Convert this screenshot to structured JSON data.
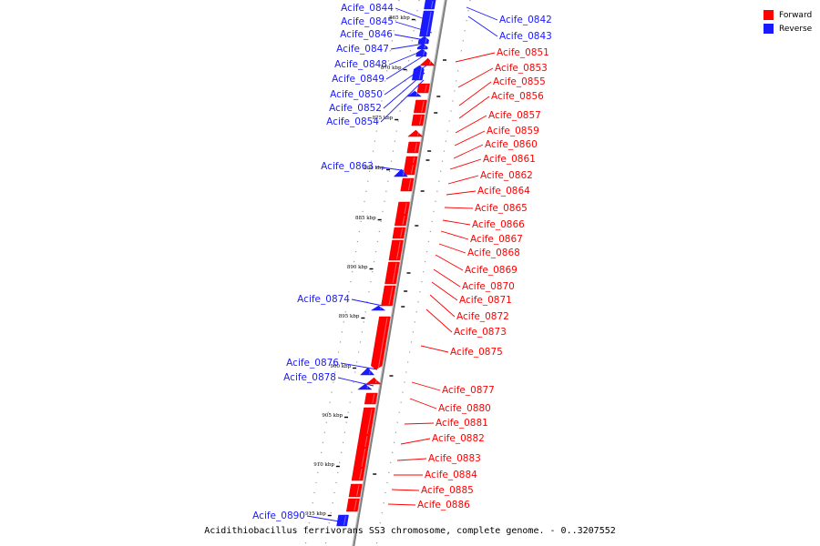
{
  "colors": {
    "forward": "#ff0000",
    "reverse": "#1a1aff",
    "axis": "#808080"
  },
  "legend": [
    {
      "key": "forward",
      "label": "Forward"
    },
    {
      "key": "reverse",
      "label": "Reverse"
    }
  ],
  "caption": "Acidithiobacillus ferrivorans SS3 chromosome, complete genome. - 0..3207552",
  "axis": {
    "ticks": [
      "865 kbp",
      "870 kbp",
      "875 kbp",
      "880 kbp",
      "885 kbp",
      "890 kbp",
      "895 kbp",
      "900 kbp",
      "905 kbp",
      "910 kbp",
      "915 kbp"
    ]
  },
  "genes_reverse": [
    "Acife_0844",
    "Acife_0845",
    "Acife_0846",
    "Acife_0847",
    "Acife_0848",
    "Acife_0849",
    "Acife_0850",
    "Acife_0852",
    "Acife_0854",
    "Acife_0863",
    "Acife_0874",
    "Acife_0876",
    "Acife_0878",
    "Acife_0890"
  ],
  "genes_reverse_right": [
    "Acife_0842",
    "Acife_0843"
  ],
  "genes_forward": [
    "Acife_0851",
    "Acife_0853",
    "Acife_0855",
    "Acife_0856",
    "Acife_0857",
    "Acife_0859",
    "Acife_0860",
    "Acife_0861",
    "Acife_0862",
    "Acife_0864",
    "Acife_0865",
    "Acife_0866",
    "Acife_0867",
    "Acife_0868",
    "Acife_0869",
    "Acife_0870",
    "Acife_0871",
    "Acife_0872",
    "Acife_0873",
    "Acife_0875",
    "Acife_0877",
    "Acife_0880",
    "Acife_0881",
    "Acife_0882",
    "Acife_0883",
    "Acife_0884",
    "Acife_0885",
    "Acife_0886"
  ]
}
